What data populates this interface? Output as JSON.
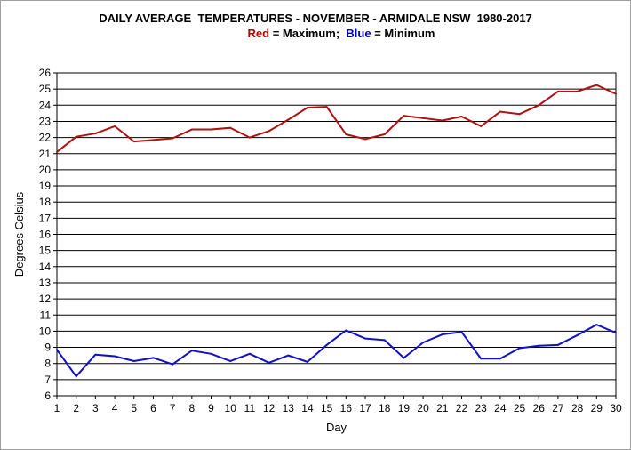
{
  "chart_data": {
    "type": "line",
    "title": "DAILY AVERAGE  TEMPERATURES - NOVEMBER - ARMIDALE NSW  1980-2017",
    "subtitle": {
      "red_word": "Red",
      "red_text": " = Maximum;  ",
      "blue_word": "Blue",
      "blue_text": " = Minimum"
    },
    "xlabel": "Day",
    "ylabel": "Degrees Celsius",
    "xlim": [
      1,
      30
    ],
    "ylim": [
      6,
      26
    ],
    "grid": true,
    "x": [
      1,
      2,
      3,
      4,
      5,
      6,
      7,
      8,
      9,
      10,
      11,
      12,
      13,
      14,
      15,
      16,
      17,
      18,
      19,
      20,
      21,
      22,
      23,
      24,
      25,
      26,
      27,
      28,
      29,
      30
    ],
    "xticks": [
      "1",
      "2",
      "3",
      "4",
      "5",
      "6",
      "7",
      "8",
      "9",
      "10",
      "11",
      "12",
      "13",
      "14",
      "15",
      "16",
      "17",
      "18",
      "19",
      "20",
      "21",
      "22",
      "23",
      "24",
      "25",
      "26",
      "27",
      "28",
      "29",
      "30"
    ],
    "yticks": [
      "6",
      "7",
      "8",
      "9",
      "10",
      "11",
      "12",
      "13",
      "14",
      "15",
      "16",
      "17",
      "18",
      "19",
      "20",
      "21",
      "22",
      "23",
      "24",
      "25",
      "26"
    ],
    "series": [
      {
        "color": "#b01010",
        "values": [
          21.1,
          22.05,
          22.25,
          22.7,
          21.75,
          21.85,
          21.95,
          22.5,
          22.5,
          22.6,
          22.0,
          22.4,
          23.1,
          23.85,
          23.9,
          22.2,
          21.9,
          22.2,
          23.35,
          23.2,
          23.05,
          23.3,
          22.7,
          23.6,
          23.45,
          24.0,
          24.85,
          24.85,
          25.25,
          24.7
        ]
      },
      {
        "color": "#1010c8",
        "values": [
          8.85,
          7.2,
          8.55,
          8.45,
          8.15,
          8.35,
          7.95,
          8.8,
          8.6,
          8.15,
          8.6,
          8.05,
          8.5,
          8.1,
          9.15,
          10.05,
          9.55,
          9.45,
          8.35,
          9.3,
          9.8,
          9.95,
          8.3,
          8.3,
          8.95,
          9.1,
          9.15,
          9.75,
          10.4,
          9.9
        ]
      }
    ]
  }
}
